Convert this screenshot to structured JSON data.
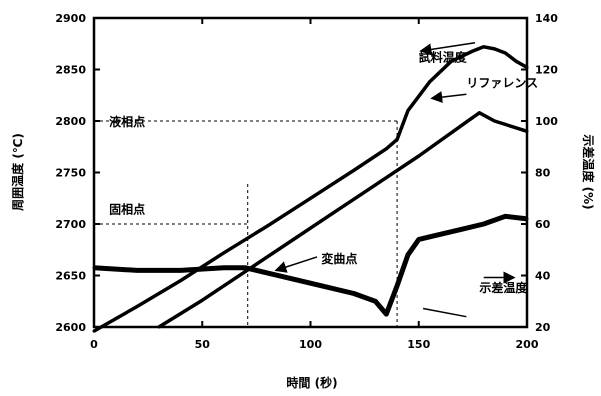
{
  "chart_data": {
    "type": "line",
    "title": "",
    "xlabel": "時間 (秒)",
    "ylabel_left": "周囲温度 (℃)",
    "ylabel_right": "示差温度 (%)",
    "xlim": [
      0,
      200
    ],
    "ylim_left": [
      2600,
      2900
    ],
    "ylim_right": [
      20,
      140
    ],
    "x_ticks": [
      "0",
      "50",
      "100",
      "150",
      "200"
    ],
    "y_left_ticks": [
      "2600",
      "2650",
      "2700",
      "2750",
      "2800",
      "2850",
      "2900"
    ],
    "y_right_ticks": [
      "20",
      "40",
      "60",
      "80",
      "100",
      "120",
      "140"
    ],
    "grid": false,
    "series": [
      {
        "name": "試料温度",
        "axis": "left",
        "x": [
          0,
          20,
          40,
          60,
          80,
          100,
          120,
          135,
          140,
          145,
          155,
          165,
          175,
          180,
          185,
          190,
          195,
          200
        ],
        "y": [
          2596,
          2620,
          2645,
          2672,
          2698,
          2725,
          2752,
          2773,
          2782,
          2810,
          2838,
          2858,
          2868,
          2872,
          2870,
          2866,
          2858,
          2852
        ]
      },
      {
        "name": "リファレンス",
        "axis": "left",
        "x": [
          30,
          50,
          70,
          90,
          110,
          130,
          150,
          170,
          178,
          185,
          200
        ],
        "y": [
          2600,
          2626,
          2654,
          2682,
          2710,
          2738,
          2766,
          2796,
          2808,
          2800,
          2790
        ]
      },
      {
        "name": "示差温度",
        "axis": "right",
        "x": [
          0,
          20,
          40,
          60,
          70,
          80,
          100,
          120,
          130,
          135,
          140,
          145,
          150,
          160,
          170,
          180,
          190,
          200
        ],
        "y": [
          43,
          42,
          42,
          43,
          43,
          41,
          37,
          33,
          30,
          25,
          36,
          48,
          54,
          56,
          58,
          60,
          63,
          62
        ]
      }
    ],
    "annotations": [
      {
        "text": "試料温度",
        "x": 150,
        "y": 2858,
        "axis": "left"
      },
      {
        "text": "リファレンス",
        "x": 172,
        "y": 2833,
        "axis": "left"
      },
      {
        "text": "液相点",
        "x": 7,
        "y": 2795,
        "axis": "left"
      },
      {
        "text": "固相点",
        "x": 7,
        "y": 2710,
        "axis": "left"
      },
      {
        "text": "変曲点",
        "x": 105,
        "y": 2662,
        "axis": "left"
      },
      {
        "text": "示差温度",
        "x": 178,
        "y": 2634,
        "axis": "left"
      }
    ],
    "reference_lines": {
      "liquidus_y": 2800,
      "liquidus_x": 140,
      "solidus_y": 2700,
      "solidus_x": 71
    }
  }
}
